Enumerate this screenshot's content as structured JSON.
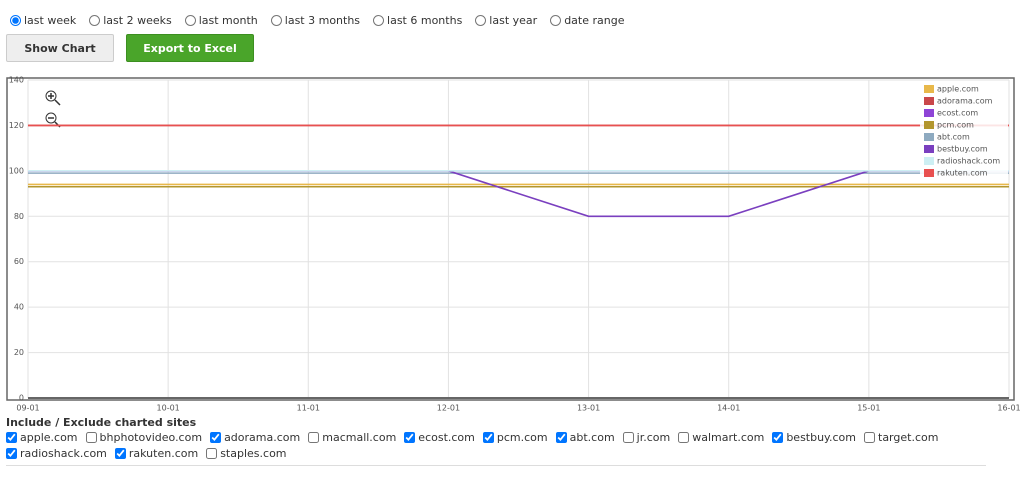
{
  "periods": {
    "options": [
      "last week",
      "last 2 weeks",
      "last month",
      "last 3 months",
      "last 6 months",
      "last year",
      "date range"
    ],
    "selected": 0
  },
  "buttons": {
    "show": "Show Chart",
    "export": "Export to Excel"
  },
  "chart_data": {
    "type": "line",
    "categories": [
      "09-01",
      "10-01",
      "11-01",
      "12-01",
      "13-01",
      "14-01",
      "15-01",
      "16-01"
    ],
    "ylim": [
      0,
      140
    ],
    "yticks": [
      0,
      20,
      40,
      60,
      80,
      100,
      120,
      140
    ],
    "grid": true,
    "legend": "top-right",
    "series": [
      {
        "name": "apple.com",
        "color": "#e8b84a",
        "values": [
          94,
          94,
          94,
          94,
          94,
          94,
          94,
          94
        ]
      },
      {
        "name": "adorama.com",
        "color": "#c9474a",
        "values": [
          120,
          120,
          120,
          120,
          120,
          120,
          120,
          120
        ]
      },
      {
        "name": "ecost.com",
        "color": "#8e44d6",
        "values": [
          100,
          100,
          100,
          100,
          100,
          100,
          100,
          100
        ]
      },
      {
        "name": "pcm.com",
        "color": "#b3962e",
        "values": [
          93,
          93,
          93,
          93,
          93,
          93,
          93,
          93
        ]
      },
      {
        "name": "abt.com",
        "color": "#8eaac0",
        "values": [
          99,
          99,
          99,
          99,
          99,
          99,
          99,
          99
        ]
      },
      {
        "name": "bestbuy.com",
        "color": "#7a3fbf",
        "values": [
          100,
          100,
          100,
          100,
          80,
          80,
          100,
          100
        ]
      },
      {
        "name": "radioshack.com",
        "color": "#cdeff3",
        "values": [
          100,
          100,
          100,
          100,
          100,
          100,
          100,
          100
        ]
      },
      {
        "name": "rakuten.com",
        "color": "#e85050",
        "values": [
          120,
          120,
          120,
          120,
          120,
          120,
          120,
          120
        ]
      }
    ]
  },
  "sites": {
    "title": "Include / Exclude charted sites",
    "items": [
      {
        "name": "apple.com",
        "checked": true
      },
      {
        "name": "bhphotovideo.com",
        "checked": false
      },
      {
        "name": "adorama.com",
        "checked": true
      },
      {
        "name": "macmall.com",
        "checked": false
      },
      {
        "name": "ecost.com",
        "checked": true
      },
      {
        "name": "pcm.com",
        "checked": true
      },
      {
        "name": "abt.com",
        "checked": true
      },
      {
        "name": "jr.com",
        "checked": false
      },
      {
        "name": "walmart.com",
        "checked": false
      },
      {
        "name": "bestbuy.com",
        "checked": true
      },
      {
        "name": "target.com",
        "checked": false
      },
      {
        "name": "radioshack.com",
        "checked": true
      },
      {
        "name": "rakuten.com",
        "checked": true
      },
      {
        "name": "staples.com",
        "checked": false
      }
    ]
  }
}
